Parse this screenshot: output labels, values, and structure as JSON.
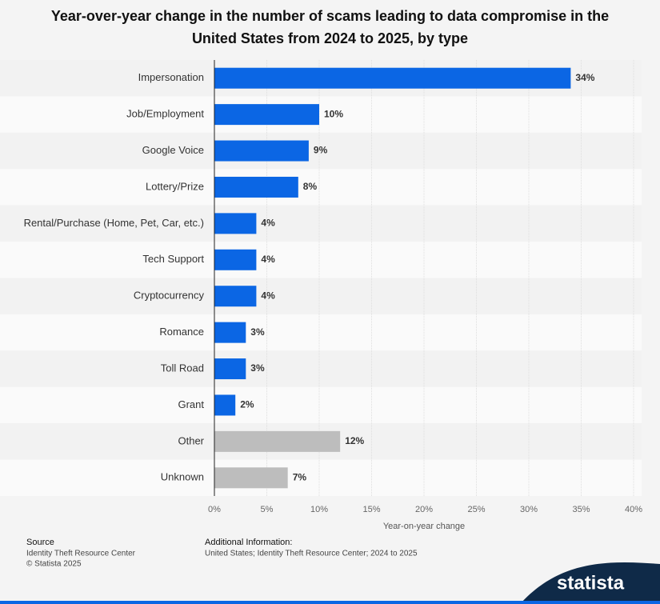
{
  "chart_data": {
    "type": "hbar",
    "title": "Year-over-year change in the number of scams leading to data compromise in the United States from 2024 to 2025, by type",
    "categories": [
      "Impersonation",
      "Job/Employment",
      "Google Voice",
      "Lottery/Prize",
      "Rental/Purchase (Home, Pet, Car, etc.)",
      "Tech Support",
      "Cryptocurrency",
      "Romance",
      "Toll Road",
      "Grant",
      "Other",
      "Unknown"
    ],
    "values": [
      34,
      10,
      9,
      8,
      4,
      4,
      4,
      3,
      3,
      2,
      12,
      7
    ],
    "value_labels": [
      "34%",
      "10%",
      "9%",
      "8%",
      "4%",
      "4%",
      "4%",
      "3%",
      "3%",
      "2%",
      "12%",
      "7%"
    ],
    "colors": [
      "#0b66e4",
      "#0b66e4",
      "#0b66e4",
      "#0b66e4",
      "#0b66e4",
      "#0b66e4",
      "#0b66e4",
      "#0b66e4",
      "#0b66e4",
      "#0b66e4",
      "#bdbdbd",
      "#bdbdbd"
    ],
    "xlabel": "Year-on-year change",
    "xlim": [
      0,
      40
    ],
    "xticks": [
      {
        "value": 0,
        "label": "0%"
      },
      {
        "value": 5,
        "label": "5%"
      },
      {
        "value": 10,
        "label": "10%"
      },
      {
        "value": 15,
        "label": "15%"
      },
      {
        "value": 20,
        "label": "20%"
      },
      {
        "value": 25,
        "label": "25%"
      },
      {
        "value": 30,
        "label": "30%"
      },
      {
        "value": 35,
        "label": "35%"
      },
      {
        "value": 40,
        "label": "40%"
      }
    ],
    "grid": true
  },
  "footer": {
    "source_heading": "Source",
    "source_lines": [
      "Identity Theft Resource Center",
      "© Statista 2025"
    ],
    "info_heading": "Additional Information:",
    "info_text": "United States; Identity Theft Resource Center; 2024 to 2025",
    "logo": "statista"
  }
}
